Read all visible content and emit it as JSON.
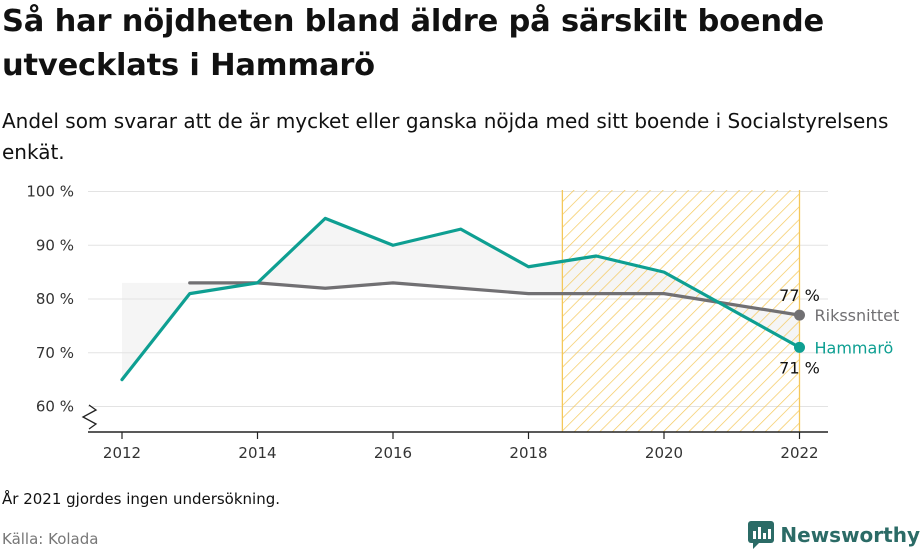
{
  "title": "Så har nöjdheten bland äldre på särskilt boende utvecklats i Hammarö",
  "subtitle": "Andel som svarar att de är mycket eller ganska nöjda med sitt boende i Socialstyrelsens enkät.",
  "note": "År 2021 gjordes ingen undersökning.",
  "source": "Källa: Kolada",
  "brand": {
    "name": "Newsworthy",
    "icon": "chart-speech-bubble-icon"
  },
  "colors": {
    "hammaro": "#0e9f92",
    "riket": "#717073",
    "highlight": "#f4c85a",
    "band": "#f5f5f5",
    "brand": "#2b6b66"
  },
  "chart_data": {
    "type": "line",
    "x_ticks": [
      "2012",
      "2014",
      "2016",
      "2018",
      "2020",
      "2022"
    ],
    "y_ticks": [
      "60 %",
      "70 %",
      "80 %",
      "90 %",
      "100 %"
    ],
    "ylim": [
      55,
      100
    ],
    "xlim": [
      2011.5,
      2022.5
    ],
    "y_axis_break": true,
    "grid": true,
    "highlight_period": [
      2018.5,
      2022
    ],
    "series": [
      {
        "name": "Rikssnittet",
        "color": "#717073",
        "x": [
          2013,
          2014,
          2015,
          2016,
          2017,
          2018,
          2019,
          2020,
          2022
        ],
        "y": [
          83,
          83,
          82,
          83,
          82,
          81,
          81,
          81,
          77
        ],
        "end_label": "77 %"
      },
      {
        "name": "Hammarö",
        "color": "#0e9f92",
        "x": [
          2012,
          2013,
          2014,
          2015,
          2016,
          2017,
          2018,
          2019,
          2020,
          2022
        ],
        "y": [
          65,
          81,
          83,
          95,
          90,
          93,
          86,
          88,
          85,
          71
        ],
        "end_label": "71 %"
      }
    ]
  }
}
